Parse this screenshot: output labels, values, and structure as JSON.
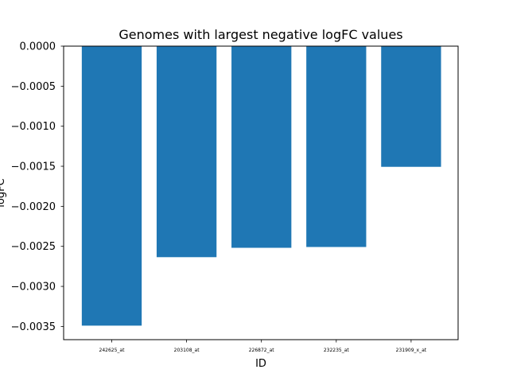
{
  "chart_data": {
    "type": "bar",
    "title": "Genomes with largest negative logFC values",
    "xlabel": "ID",
    "ylabel": "logFC",
    "categories": [
      "242625_at",
      "203108_at",
      "226872_at",
      "232235_at",
      "231909_x_at"
    ],
    "values": [
      -0.00349,
      -0.002635,
      -0.002518,
      -0.002508,
      -0.001507
    ],
    "yticks": [
      0.0,
      -0.0005,
      -0.001,
      -0.0015,
      -0.002,
      -0.0025,
      -0.003,
      -0.0035
    ],
    "ytick_labels": [
      "0.0000",
      "−0.0005",
      "−0.0010",
      "−0.0015",
      "−0.0020",
      "−0.0025",
      "−0.0030",
      "−0.0035"
    ],
    "ylim": [
      -0.003665,
      0.0
    ],
    "grid": false,
    "bar_color": "#1f77b4"
  }
}
